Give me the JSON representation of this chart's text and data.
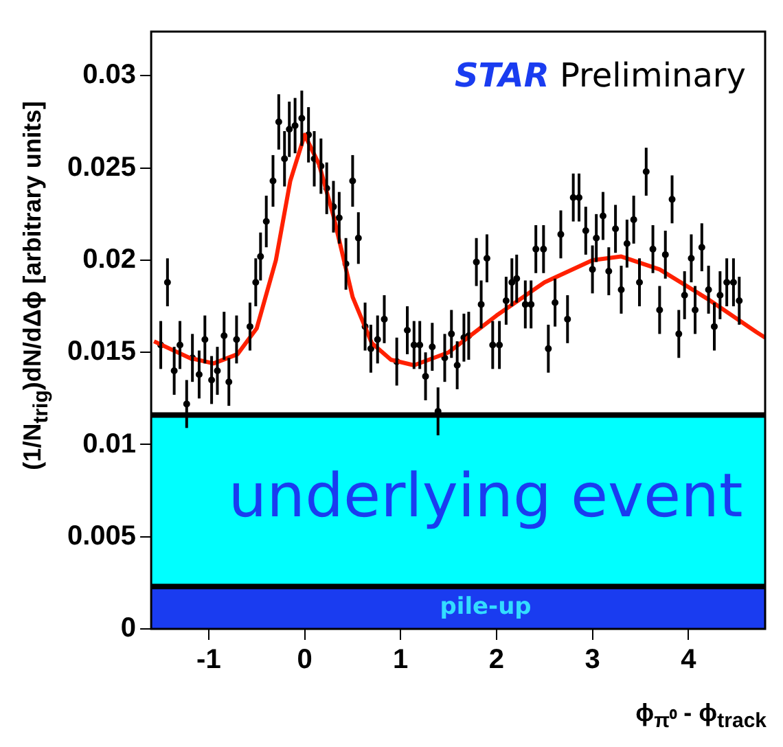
{
  "chart_data": {
    "type": "scatter",
    "xlabel": "ϕ$_{π⁰}$ - ϕ$_{track}$",
    "ylabel": "(1/N$_{trig}$)dN/dΔϕ [arbitrary units]",
    "xlim": [
      -1.6,
      4.8
    ],
    "xticks": [
      -1,
      0,
      1,
      2,
      3,
      4
    ],
    "ylim": [
      0,
      0.0324
    ],
    "yticks": [
      0,
      0.005,
      0.01,
      0.015,
      0.02,
      0.025,
      0.03
    ],
    "grid": false,
    "legend": false,
    "marker": "circle",
    "annotations": [
      "STAR Preliminary"
    ],
    "bands": [
      {
        "axis": "y",
        "from": 0,
        "to": 0.0023,
        "label": "pile-up",
        "color": "#1a3cf0"
      },
      {
        "axis": "y",
        "from": 0.0023,
        "to": 0.0116,
        "label": "underlying event",
        "color": "#00ffff"
      }
    ],
    "ref_lines": [
      {
        "axis": "y",
        "value": 0.0116,
        "color": "#000000"
      },
      {
        "axis": "y",
        "value": 0.0023,
        "color": "#000000"
      }
    ],
    "series": [
      {
        "color": "#000000",
        "x": [
          -1.5,
          -1.43,
          -1.36,
          -1.3,
          -1.23,
          -1.17,
          -1.1,
          -1.04,
          -0.97,
          -0.91,
          -0.84,
          -0.79,
          -0.71,
          -0.57,
          -0.51,
          -0.46,
          -0.4,
          -0.33,
          -0.27,
          -0.21,
          -0.16,
          -0.1,
          -0.03,
          0.04,
          0.1,
          0.17,
          0.23,
          0.3,
          0.36,
          0.43,
          0.5,
          0.56,
          0.63,
          0.69,
          0.76,
          0.83,
          0.96,
          1.07,
          1.14,
          1.2,
          1.26,
          1.33,
          1.39,
          1.46,
          1.53,
          1.59,
          1.66,
          1.71,
          1.79,
          1.84,
          1.9,
          1.96,
          2.03,
          2.1,
          2.16,
          2.21,
          2.3,
          2.36,
          2.41,
          2.49,
          2.54,
          2.61,
          2.67,
          2.74,
          2.8,
          2.86,
          2.93,
          3,
          3.04,
          3.11,
          3.17,
          3.24,
          3.3,
          3.36,
          3.43,
          3.49,
          3.56,
          3.63,
          3.7,
          3.76,
          3.83,
          3.9,
          3.96,
          4.03,
          4.07,
          4.14,
          4.21,
          4.27,
          4.33,
          4.4,
          4.47,
          4.53
        ],
        "values": [
          0.0154,
          0.0188,
          0.014,
          0.0154,
          0.0122,
          0.0147,
          0.0138,
          0.0157,
          0.0135,
          0.014,
          0.0159,
          0.0134,
          0.0157,
          0.0164,
          0.0188,
          0.0202,
          0.0221,
          0.0243,
          0.0275,
          0.0255,
          0.0271,
          0.0273,
          0.0277,
          0.0268,
          0.0255,
          0.0251,
          0.0239,
          0.0229,
          0.0223,
          0.0198,
          0.0243,
          0.0212,
          0.0164,
          0.0152,
          0.0157,
          0.0168,
          0.0145,
          0.0162,
          0.0154,
          0.0154,
          0.0137,
          0.0153,
          0.0118,
          0.0147,
          0.016,
          0.0143,
          0.0158,
          0.0159,
          0.0199,
          0.0176,
          0.0201,
          0.0154,
          0.0154,
          0.0178,
          0.0188,
          0.019,
          0.0176,
          0.0176,
          0.0206,
          0.0206,
          0.0152,
          0.0177,
          0.0214,
          0.0168,
          0.0234,
          0.0234,
          0.0216,
          0.0195,
          0.0212,
          0.0224,
          0.0194,
          0.0217,
          0.0184,
          0.0209,
          0.0222,
          0.0188,
          0.0248,
          0.0206,
          0.0173,
          0.0203,
          0.0233,
          0.016,
          0.0181,
          0.0201,
          0.0173,
          0.0207,
          0.0184,
          0.0164,
          0.0181,
          0.0188,
          0.0188,
          0.0178
        ],
        "errors": [
          0.0013,
          0.0013,
          0.0013,
          0.0013,
          0.0013,
          0.0013,
          0.0013,
          0.0013,
          0.0013,
          0.0013,
          0.0013,
          0.0013,
          0.0013,
          0.0013,
          0.0013,
          0.0013,
          0.0014,
          0.0014,
          0.0015,
          0.0015,
          0.0015,
          0.0015,
          0.0015,
          0.0015,
          0.0015,
          0.0015,
          0.0014,
          0.0014,
          0.0014,
          0.0014,
          0.0014,
          0.0014,
          0.0013,
          0.0013,
          0.0013,
          0.0013,
          0.0013,
          0.0013,
          0.0013,
          0.0013,
          0.0013,
          0.0013,
          0.0013,
          0.0013,
          0.0013,
          0.0013,
          0.0013,
          0.0013,
          0.0013,
          0.0013,
          0.0013,
          0.0013,
          0.0013,
          0.0013,
          0.0013,
          0.0013,
          0.0013,
          0.0013,
          0.0013,
          0.0013,
          0.0013,
          0.0013,
          0.0013,
          0.0013,
          0.0013,
          0.0013,
          0.0013,
          0.0013,
          0.0013,
          0.0013,
          0.0013,
          0.0013,
          0.0013,
          0.0013,
          0.0013,
          0.0013,
          0.0013,
          0.0013,
          0.0013,
          0.0013,
          0.0013,
          0.0013,
          0.0013,
          0.0013,
          0.0013,
          0.0013,
          0.0013,
          0.0013,
          0.0013,
          0.0013,
          0.0013,
          0.0013
        ]
      },
      {
        "type": "line",
        "color": "#ff2000",
        "marker": "none",
        "x": [
          -1.57,
          -1.2,
          -0.95,
          -0.7,
          -0.5,
          -0.3,
          -0.15,
          0,
          0.15,
          0.3,
          0.5,
          0.7,
          0.9,
          1.14,
          1.5,
          2,
          2.5,
          3,
          3.3,
          3.7,
          4.2,
          4.71,
          4.8
        ],
        "values": [
          0.0156,
          0.0147,
          0.0144,
          0.0149,
          0.0163,
          0.02,
          0.0243,
          0.0268,
          0.0252,
          0.0224,
          0.018,
          0.0155,
          0.0146,
          0.0143,
          0.015,
          0.017,
          0.0188,
          0.02,
          0.0202,
          0.0195,
          0.0179,
          0.0161,
          0.0158
        ]
      }
    ]
  }
}
